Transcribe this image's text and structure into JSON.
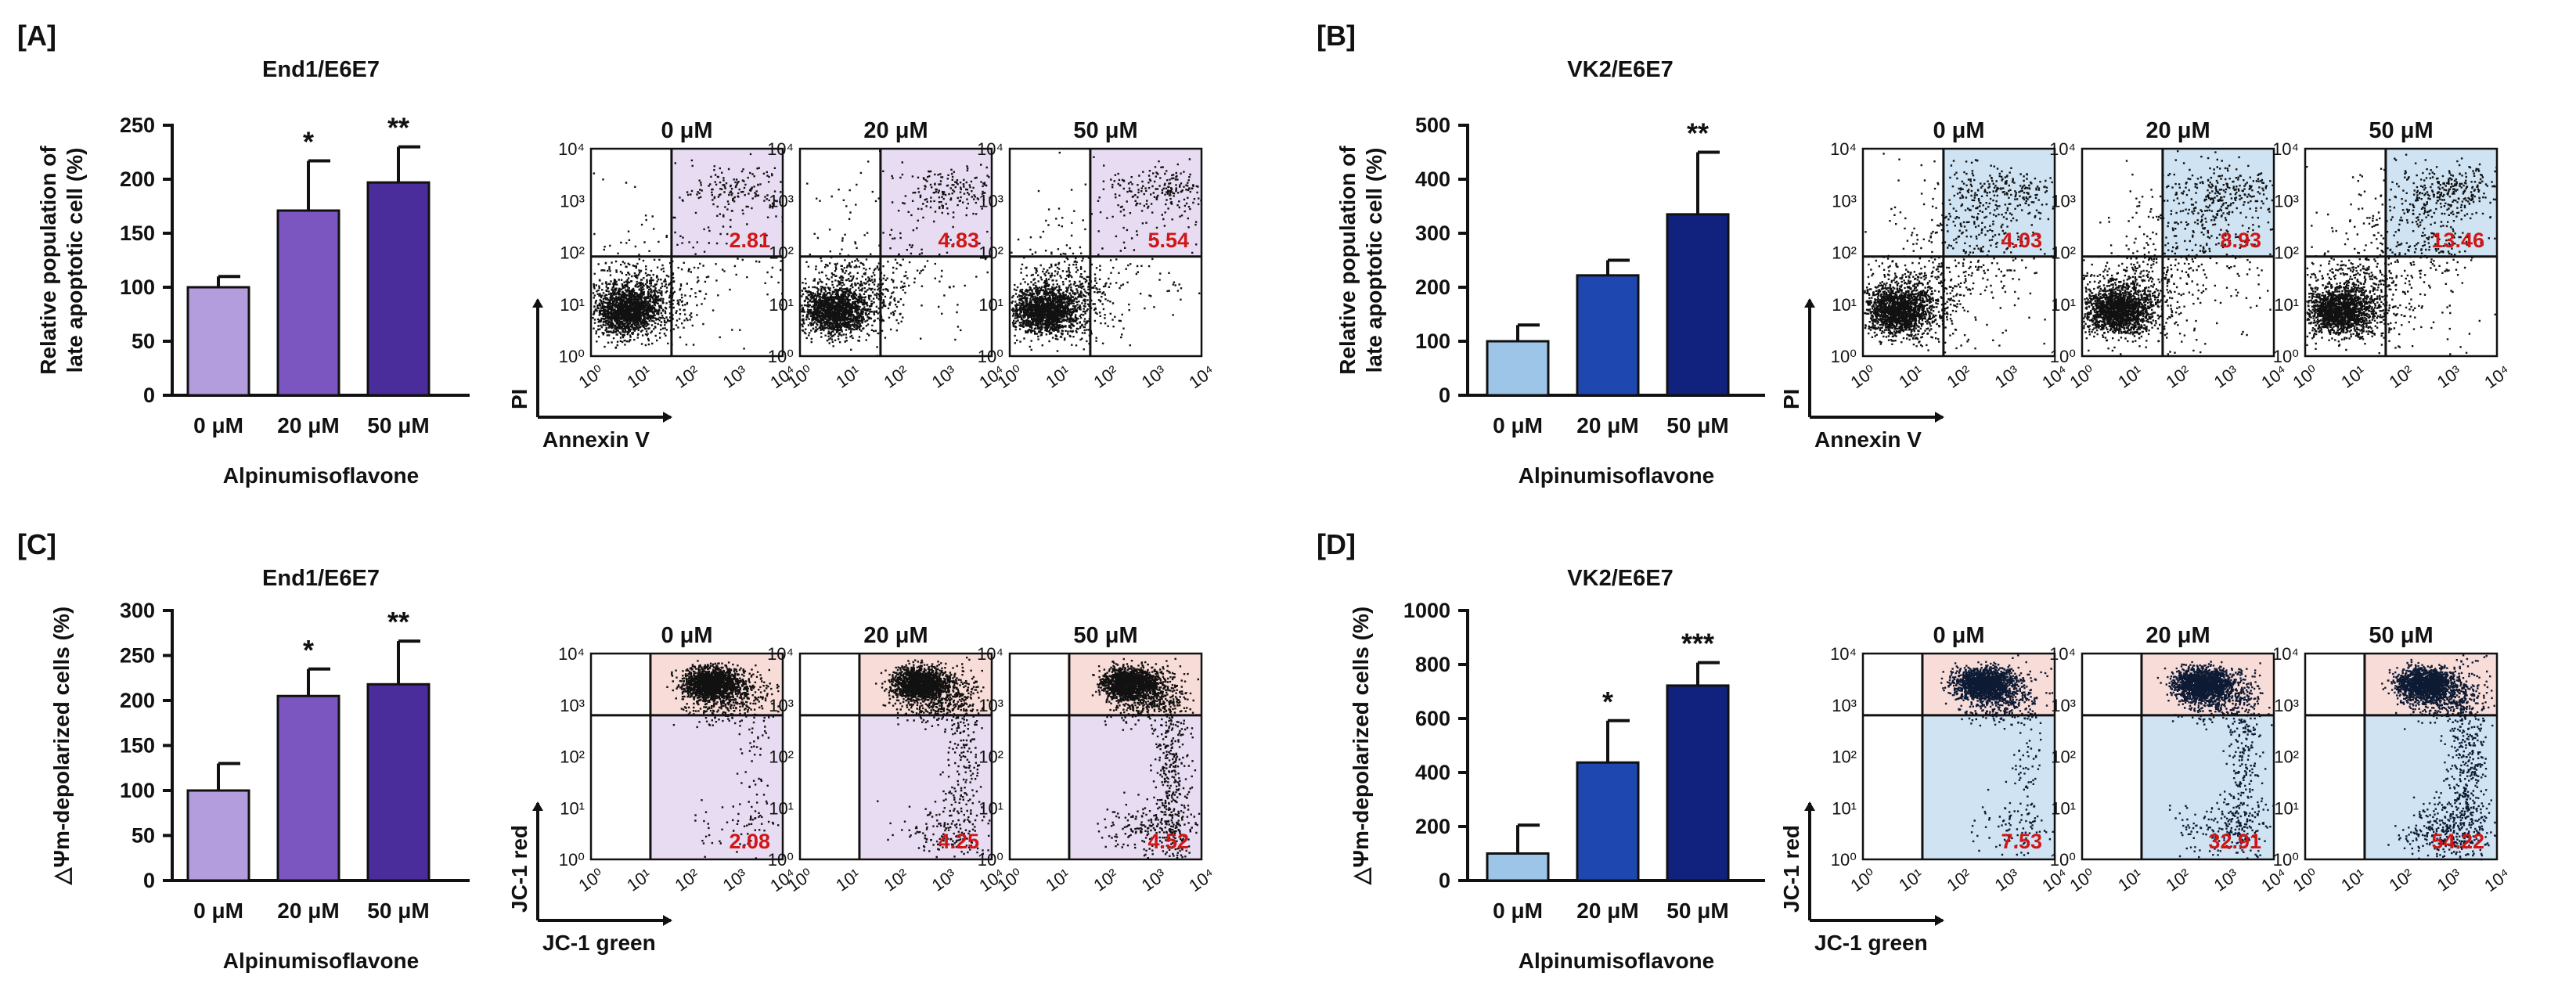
{
  "labels": {
    "x_axis_title": "Alpinumisoflavone",
    "flow_x_pi": "Annexin V",
    "flow_y_pi": "PI",
    "flow_x_jc": "JC-1 green",
    "flow_y_jc": "JC-1 red",
    "flow_ticks": [
      "10⁰",
      "10¹",
      "10²",
      "10³",
      "10⁴"
    ]
  },
  "panels": [
    {
      "letter": "[A]",
      "title": "End1/E6E7",
      "ylabel_lines": [
        "Relative population of",
        "late apoptotic cell (%)"
      ],
      "flow_kind": "pi"
    },
    {
      "letter": "[B]",
      "title": "VK2/E6E7",
      "ylabel_lines": [
        "Relative population of",
        "late apoptotic cell (%)"
      ],
      "flow_kind": "pi"
    },
    {
      "letter": "[C]",
      "title": "End1/E6E7",
      "ylabel_lines": [
        "△Ψm-depolarized cells (%)"
      ],
      "flow_kind": "jc"
    },
    {
      "letter": "[D]",
      "title": "VK2/E6E7",
      "ylabel_lines": [
        "△Ψm-depolarized cells (%)"
      ],
      "flow_kind": "jc"
    }
  ],
  "colors": {
    "purple_bars": [
      "#b39ddd",
      "#7c56c0",
      "#4a2d9a"
    ],
    "blue_bars": [
      "#9cc5e8",
      "#1f47b0",
      "#10227d"
    ],
    "purple_gate": "#e8dcf2",
    "blue_gate": "#cfe3f3",
    "pink_gate": "#f8dcd8",
    "percent_text": "#d01616"
  },
  "chart_data": [
    {
      "type": "bar",
      "panel": "A",
      "title": "End1/E6E7",
      "categories": [
        "0 μM",
        "20 μM",
        "50 μM"
      ],
      "values": [
        100,
        171,
        197
      ],
      "errors": [
        10,
        46,
        33
      ],
      "significance": [
        "",
        "*",
        "**"
      ],
      "xlabel": "Alpinumisoflavone",
      "ylabel": "Relative population of late apoptotic cell (%)",
      "ylim": [
        0,
        250
      ],
      "yticks": [
        0,
        50,
        100,
        150,
        200,
        250
      ],
      "palette": "purple",
      "flow": [
        {
          "label": "0 μM",
          "percent": "2.81"
        },
        {
          "label": "20 μM",
          "percent": "4.83"
        },
        {
          "label": "50 μM",
          "percent": "5.54"
        }
      ]
    },
    {
      "type": "bar",
      "panel": "B",
      "title": "VK2/E6E7",
      "categories": [
        "0 μM",
        "20 μM",
        "50 μM"
      ],
      "values": [
        100,
        222,
        335
      ],
      "errors": [
        30,
        28,
        115
      ],
      "significance": [
        "",
        "",
        "**"
      ],
      "xlabel": "Alpinumisoflavone",
      "ylabel": "Relative population of late apoptotic cell (%)",
      "ylim": [
        0,
        500
      ],
      "yticks": [
        0,
        100,
        200,
        300,
        400,
        500
      ],
      "palette": "blue",
      "flow": [
        {
          "label": "0 μM",
          "percent": "4.03"
        },
        {
          "label": "20 μM",
          "percent": "8.93"
        },
        {
          "label": "50 μM",
          "percent": "13.46"
        }
      ]
    },
    {
      "type": "bar",
      "panel": "C",
      "title": "End1/E6E7",
      "categories": [
        "0 μM",
        "20 μM",
        "50 μM"
      ],
      "values": [
        100,
        205,
        218
      ],
      "errors": [
        30,
        30,
        48
      ],
      "significance": [
        "",
        "*",
        "**"
      ],
      "xlabel": "Alpinumisoflavone",
      "ylabel": "△Ψm-depolarized cells (%)",
      "ylim": [
        0,
        300
      ],
      "yticks": [
        0,
        50,
        100,
        150,
        200,
        250,
        300
      ],
      "palette": "purple",
      "flow": [
        {
          "label": "0 μM",
          "percent": "2.08"
        },
        {
          "label": "20 μM",
          "percent": "4.25"
        },
        {
          "label": "50 μM",
          "percent": "4.52"
        }
      ]
    },
    {
      "type": "bar",
      "panel": "D",
      "title": "VK2/E6E7",
      "categories": [
        "0 μM",
        "20 μM",
        "50 μM"
      ],
      "values": [
        100,
        437,
        722
      ],
      "errors": [
        105,
        155,
        85
      ],
      "significance": [
        "",
        "*",
        "***"
      ],
      "xlabel": "Alpinumisoflavone",
      "ylabel": "△Ψm-depolarized cells (%)",
      "ylim": [
        0,
        1000
      ],
      "yticks": [
        0,
        200,
        400,
        600,
        800,
        1000
      ],
      "palette": "blue",
      "flow": [
        {
          "label": "0 μM",
          "percent": "7.53"
        },
        {
          "label": "20 μM",
          "percent": "32.91"
        },
        {
          "label": "50 μM",
          "percent": "54.22"
        }
      ]
    }
  ]
}
